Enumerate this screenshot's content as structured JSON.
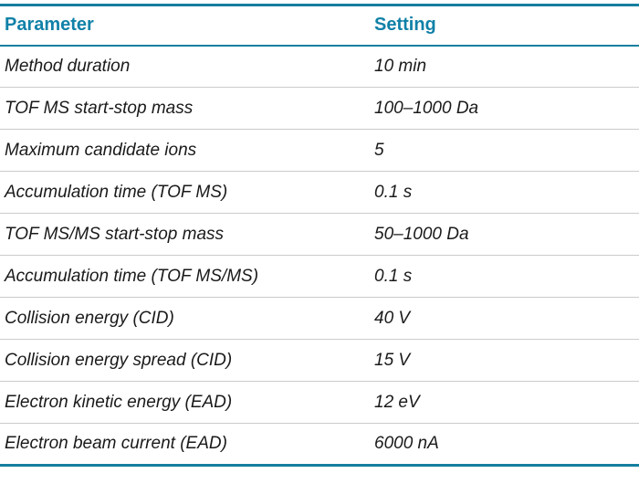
{
  "table": {
    "headers": [
      "Parameter",
      "Setting"
    ],
    "rows": [
      {
        "parameter": "Method duration",
        "setting": "10 min"
      },
      {
        "parameter": "TOF MS start-stop mass",
        "setting": "100–1000 Da"
      },
      {
        "parameter": "Maximum candidate ions",
        "setting": "5"
      },
      {
        "parameter": "Accumulation time (TOF MS)",
        "setting": "0.1 s"
      },
      {
        "parameter": "TOF MS/MS start-stop mass",
        "setting": "50–1000 Da"
      },
      {
        "parameter": "Accumulation time (TOF MS/MS)",
        "setting": "0.1 s"
      },
      {
        "parameter": "Collision energy (CID)",
        "setting": "40 V"
      },
      {
        "parameter": "Collision energy spread (CID)",
        "setting": "15 V"
      },
      {
        "parameter": "Electron kinetic energy (EAD)",
        "setting": "12 eV"
      },
      {
        "parameter": "Electron beam current (EAD)",
        "setting": "6000 nA"
      }
    ],
    "colors": {
      "accent_rule": "#157f9f",
      "header_text": "#1181a8",
      "body_text": "#1a1a1a",
      "row_separator": "#cbcbcb"
    }
  },
  "chart_data": {
    "type": "table",
    "columns": [
      "Parameter",
      "Setting"
    ],
    "rows": [
      [
        "Method duration",
        "10 min"
      ],
      [
        "TOF MS start-stop mass",
        "100–1000 Da"
      ],
      [
        "Maximum candidate ions",
        "5"
      ],
      [
        "Accumulation time (TOF MS)",
        "0.1 s"
      ],
      [
        "TOF MS/MS start-stop mass",
        "50–1000 Da"
      ],
      [
        "Accumulation time (TOF MS/MS)",
        "0.1 s"
      ],
      [
        "Collision energy (CID)",
        "40 V"
      ],
      [
        "Collision energy spread (CID)",
        "15 V"
      ],
      [
        "Electron kinetic energy (EAD)",
        "12 eV"
      ],
      [
        "Electron beam current (EAD)",
        "6000 nA"
      ]
    ]
  }
}
